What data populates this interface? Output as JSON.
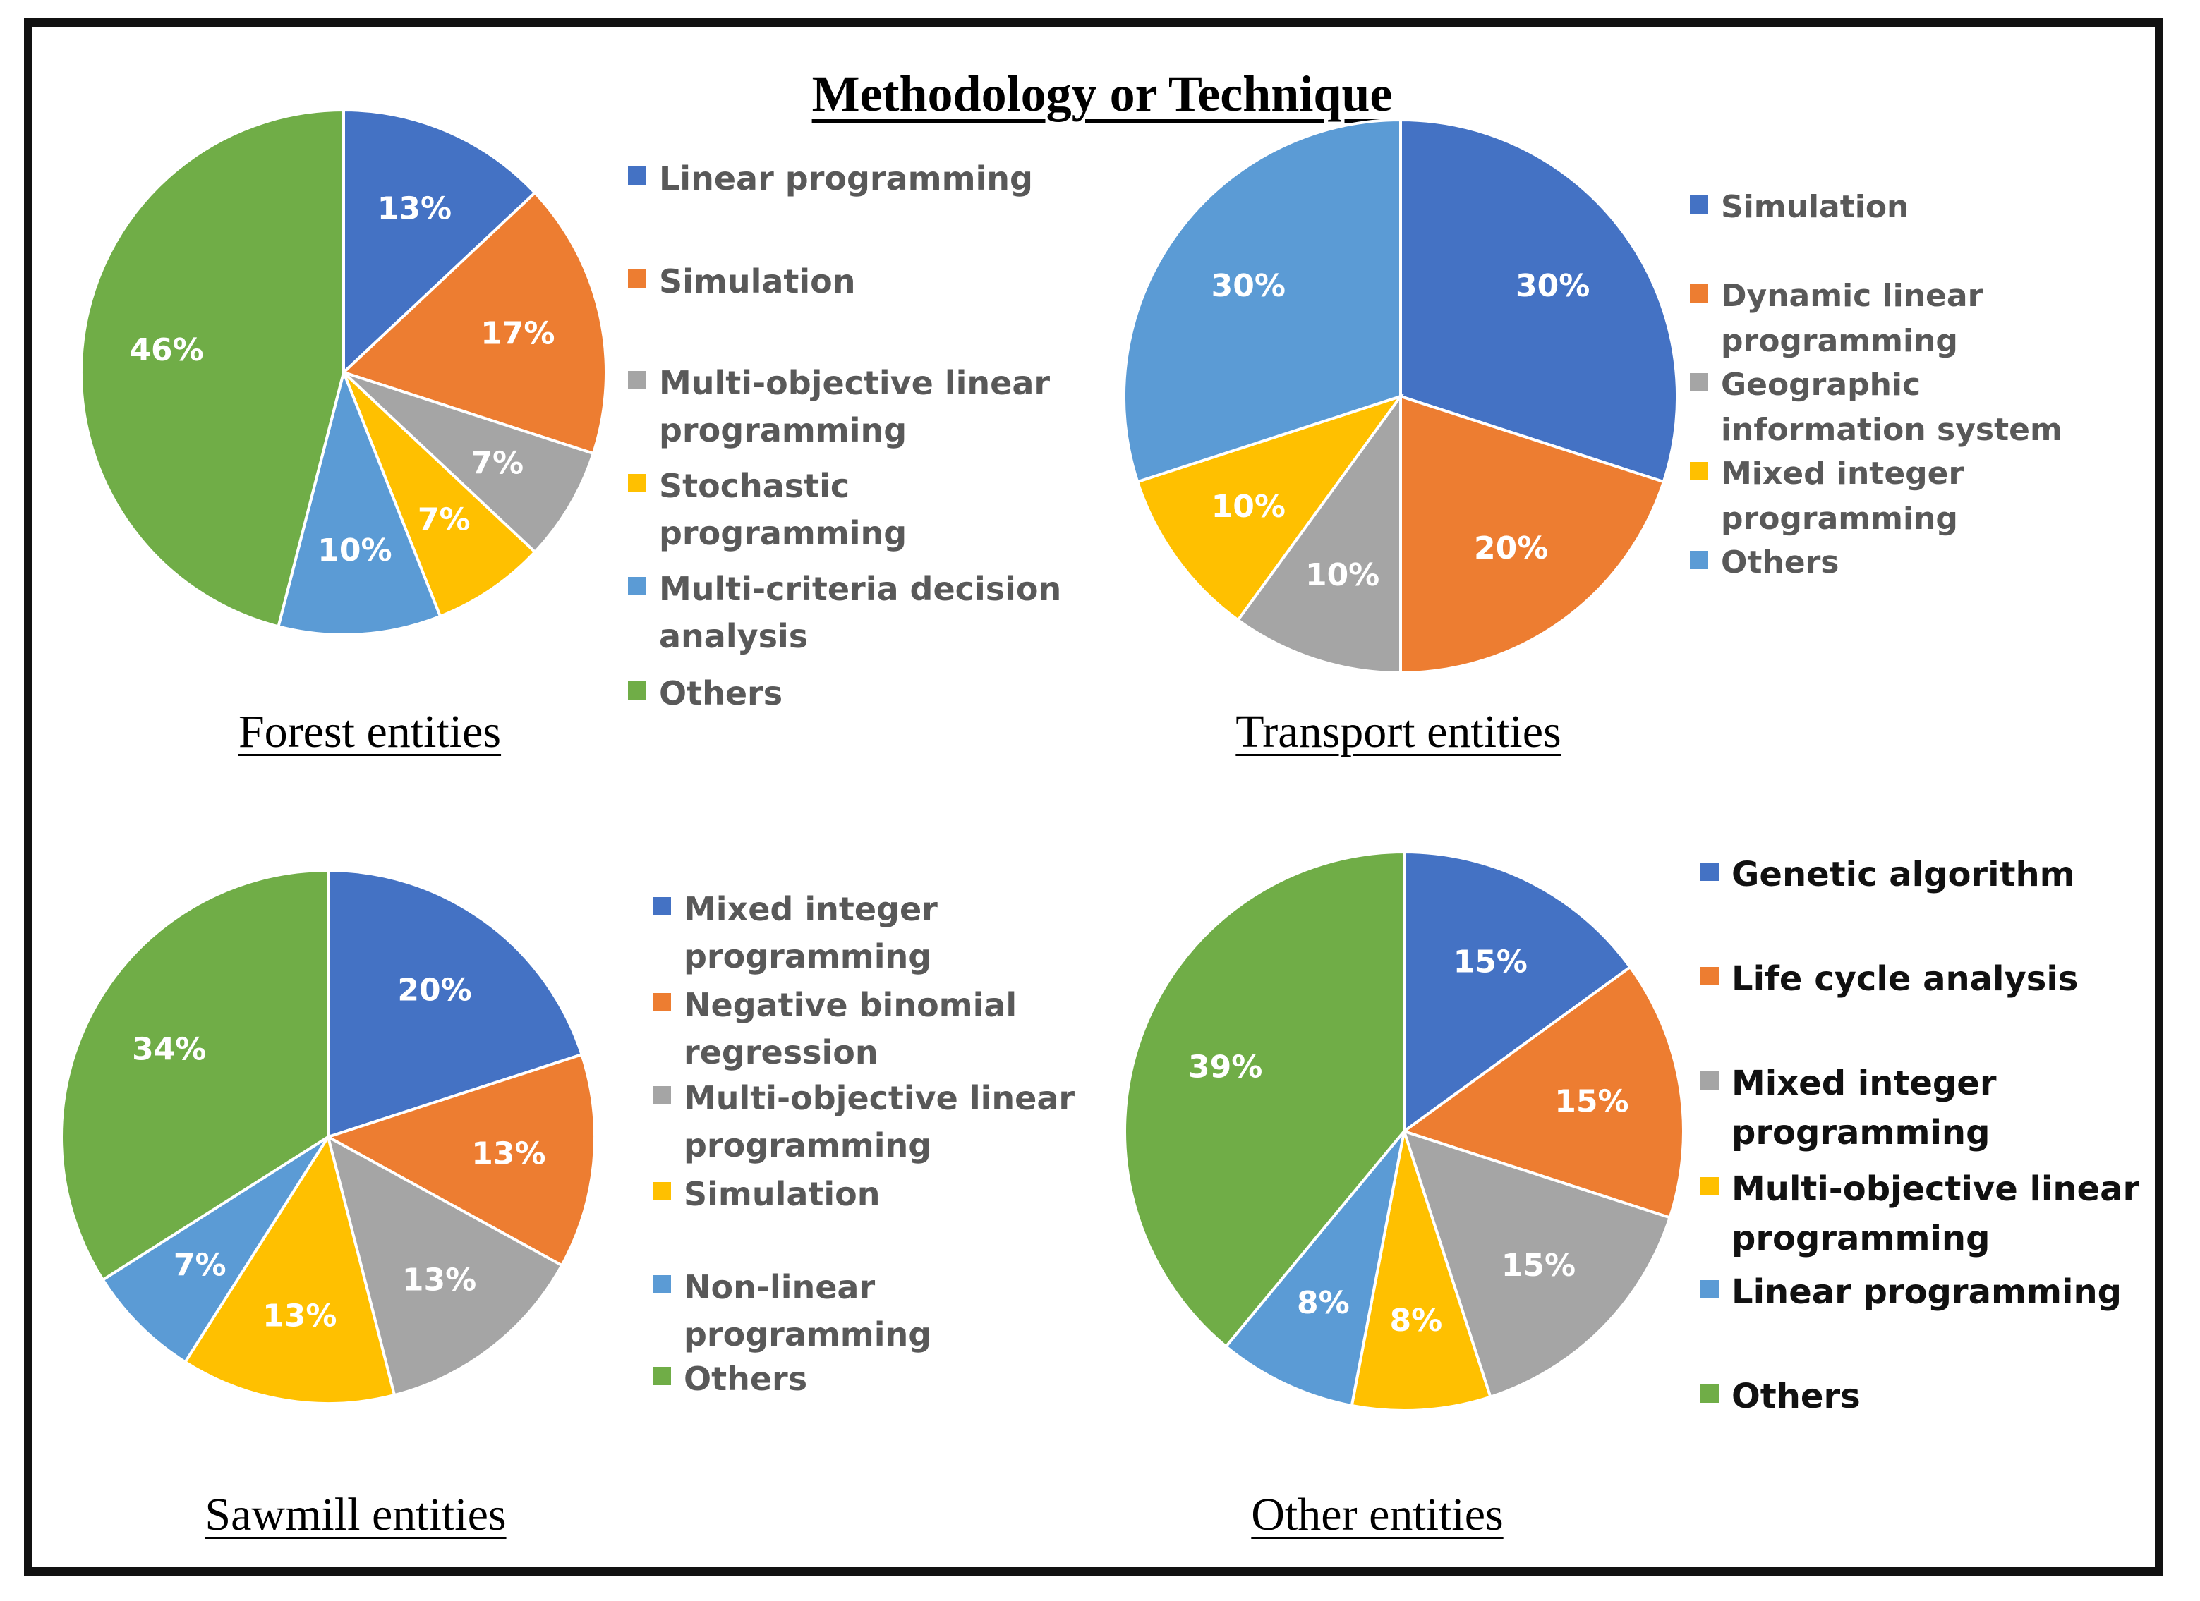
{
  "title": "Methodology or Technique",
  "colors": {
    "blue": "#4472C4",
    "orange": "#ED7D31",
    "gray": "#A5A5A5",
    "yellow": "#FFC000",
    "lightblue": "#5B9BD5",
    "green": "#70AD47"
  },
  "chart_data": [
    {
      "type": "pie",
      "title": "Forest entities",
      "categories": [
        "Linear programming",
        "Simulation",
        "Multi-objective linear programming",
        "Stochastic programming",
        "Multi-criteria decision analysis",
        "Others"
      ],
      "values": [
        13,
        17,
        7,
        7,
        10,
        46
      ],
      "labels": [
        "13%",
        "17%",
        "7%",
        "7%",
        "10%",
        "46%"
      ],
      "colors": [
        "#4472C4",
        "#ED7D31",
        "#A5A5A5",
        "#FFC000",
        "#5B9BD5",
        "#70AD47"
      ],
      "legend": [
        "Linear programming",
        "Simulation",
        "Multi-objective linear programming",
        "Stochastic programming",
        "Multi-criteria decision analysis",
        "Others"
      ]
    },
    {
      "type": "pie",
      "title": "Transport entities",
      "categories": [
        "Simulation",
        "Dynamic linear programming",
        "Geographic information system",
        "Mixed integer programming",
        "Others"
      ],
      "values": [
        30,
        20,
        10,
        10,
        30
      ],
      "labels": [
        "30%",
        "20%",
        "10%",
        "10%",
        "30%"
      ],
      "colors": [
        "#4472C4",
        "#ED7D31",
        "#A5A5A5",
        "#FFC000",
        "#5B9BD5"
      ],
      "legend": [
        "Simulation",
        "Dynamic linear programming",
        "Geographic information system",
        "Mixed integer programming",
        "Others"
      ]
    },
    {
      "type": "pie",
      "title": "Sawmill entities",
      "categories": [
        "Mixed integer programming",
        "Negative binomial regression",
        "Multi-objective linear programming",
        "Simulation",
        "Non-linear programming",
        "Others"
      ],
      "values": [
        20,
        13,
        13,
        13,
        7,
        34
      ],
      "labels": [
        "20%",
        "13%",
        "13%",
        "13%",
        "7%",
        "34%"
      ],
      "colors": [
        "#4472C4",
        "#ED7D31",
        "#A5A5A5",
        "#FFC000",
        "#5B9BD5",
        "#70AD47"
      ],
      "legend": [
        "Mixed integer programming",
        "Negative binomial regression",
        "Multi-objective linear programming",
        "Simulation",
        "Non-linear programming",
        "Others"
      ]
    },
    {
      "type": "pie",
      "title": "Other entities",
      "categories": [
        "Genetic algorithm",
        "Life cycle analysis",
        "Mixed integer programming",
        "Multi-objective linear programming",
        "Linear programming",
        "Others"
      ],
      "values": [
        15,
        15,
        15,
        8,
        8,
        39
      ],
      "labels": [
        "15%",
        "15%",
        "15%",
        "8%",
        "8%",
        "39%"
      ],
      "colors": [
        "#4472C4",
        "#ED7D31",
        "#A5A5A5",
        "#FFC000",
        "#5B9BD5",
        "#70AD47"
      ],
      "legend": [
        "Genetic algorithm",
        "Life cycle analysis",
        "Mixed integer programming",
        "Multi-objective linear programming",
        "Linear programming",
        "Others"
      ]
    }
  ]
}
